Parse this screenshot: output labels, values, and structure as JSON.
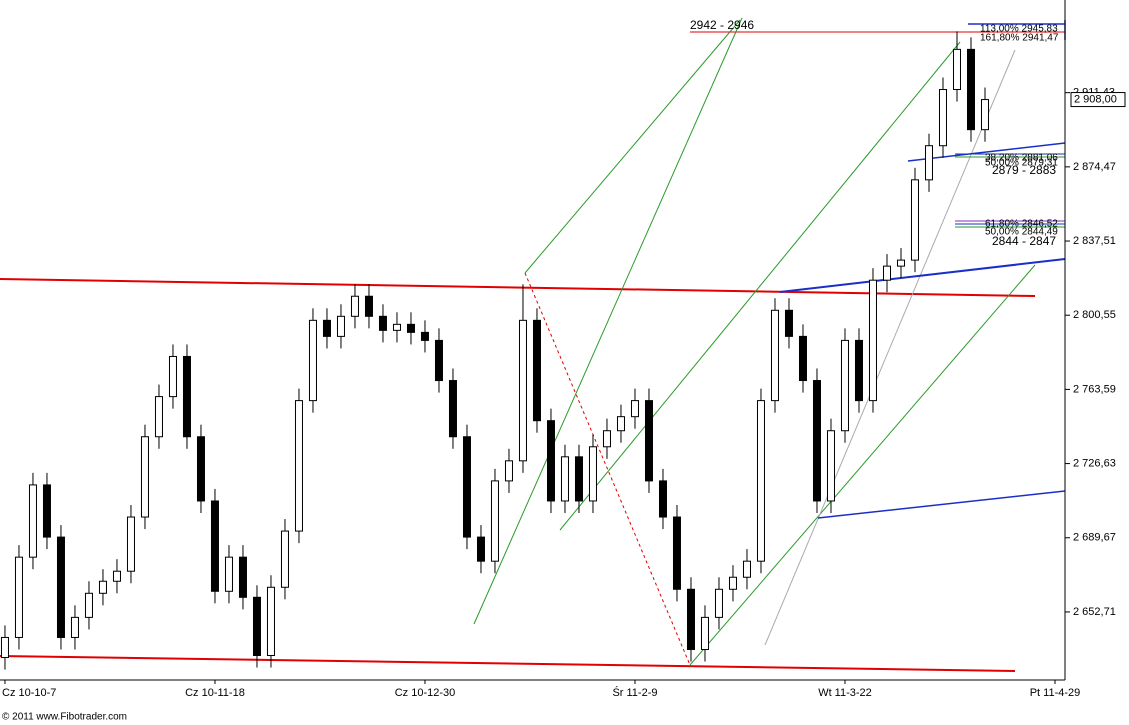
{
  "chart_data": {
    "type": "candlestick",
    "x": [
      0,
      2,
      4,
      6,
      8,
      10,
      12,
      14,
      16,
      18,
      20,
      22,
      24,
      26,
      28,
      30,
      32,
      34,
      36,
      38,
      40,
      42,
      44,
      46,
      48,
      50,
      52,
      54,
      56,
      58,
      60,
      62,
      64,
      66,
      68,
      70,
      72,
      74,
      76,
      78,
      80,
      82,
      84,
      86,
      88,
      90,
      92,
      94,
      96,
      98,
      100,
      102,
      104,
      106,
      108,
      110,
      112,
      114,
      116,
      118,
      120,
      122,
      124,
      126,
      128,
      130,
      132,
      134,
      136,
      138,
      140
    ],
    "open": [
      2630,
      2640,
      2680,
      2716,
      2690,
      2640,
      2650,
      2662,
      2668,
      2673,
      2700,
      2740,
      2760,
      2780,
      2740,
      2708,
      2663,
      2680,
      2660,
      2631,
      2665,
      2693,
      2758,
      2798,
      2790,
      2800,
      2810,
      2800,
      2793,
      2796,
      2792,
      2788,
      2768,
      2740,
      2690,
      2678,
      2718,
      2728,
      2798,
      2748,
      2708,
      2730,
      2708,
      2735,
      2743,
      2750,
      2758,
      2718,
      2700,
      2664,
      2634,
      2650,
      2664,
      2670,
      2678,
      2758,
      2803,
      2790,
      2768,
      2708,
      2743,
      2788,
      2758,
      2818,
      2825,
      2828,
      2868,
      2885,
      2913,
      2933,
      2893
    ],
    "high": [
      2646,
      2686,
      2722,
      2722,
      2696,
      2656,
      2668,
      2674,
      2679,
      2706,
      2746,
      2766,
      2786,
      2786,
      2746,
      2714,
      2686,
      2686,
      2666,
      2671,
      2699,
      2764,
      2804,
      2804,
      2806,
      2816,
      2816,
      2806,
      2802,
      2802,
      2798,
      2794,
      2774,
      2746,
      2696,
      2724,
      2734,
      2816,
      2804,
      2754,
      2736,
      2736,
      2741,
      2749,
      2756,
      2764,
      2764,
      2724,
      2706,
      2670,
      2656,
      2670,
      2676,
      2684,
      2764,
      2809,
      2809,
      2796,
      2774,
      2749,
      2794,
      2794,
      2824,
      2831,
      2834,
      2874,
      2891,
      2919,
      2942,
      2939,
      2914
    ],
    "low": [
      2624,
      2634,
      2674,
      2684,
      2634,
      2634,
      2644,
      2656,
      2662,
      2667,
      2694,
      2734,
      2754,
      2734,
      2702,
      2657,
      2657,
      2654,
      2625,
      2625,
      2659,
      2687,
      2752,
      2784,
      2784,
      2794,
      2794,
      2787,
      2787,
      2786,
      2782,
      2762,
      2734,
      2684,
      2672,
      2672,
      2712,
      2722,
      2742,
      2702,
      2702,
      2702,
      2702,
      2729,
      2737,
      2744,
      2712,
      2694,
      2658,
      2628,
      2628,
      2644,
      2658,
      2664,
      2672,
      2752,
      2784,
      2762,
      2702,
      2702,
      2737,
      2752,
      2752,
      2812,
      2819,
      2822,
      2862,
      2879,
      2907,
      2887,
      2887
    ],
    "close": [
      2640,
      2680,
      2716,
      2690,
      2640,
      2650,
      2662,
      2668,
      2673,
      2700,
      2740,
      2760,
      2780,
      2740,
      2708,
      2663,
      2680,
      2660,
      2631,
      2665,
      2693,
      2758,
      2798,
      2790,
      2800,
      2810,
      2800,
      2793,
      2796,
      2792,
      2788,
      2768,
      2740,
      2690,
      2678,
      2718,
      2728,
      2798,
      2748,
      2708,
      2730,
      2708,
      2735,
      2743,
      2750,
      2758,
      2718,
      2700,
      2664,
      2634,
      2650,
      2664,
      2670,
      2678,
      2758,
      2803,
      2790,
      2768,
      2708,
      2743,
      2788,
      2758,
      2818,
      2825,
      2828,
      2868,
      2885,
      2913,
      2933,
      2893,
      2908
    ],
    "up_color": "#ffffff",
    "down_color": "#000000",
    "last_price": {
      "value": 2908,
      "label": "2 908,00"
    },
    "xlim": [
      -0.71,
      151.43
    ],
    "xticks": [
      {
        "value": 0,
        "label": "Cz 10-10-7"
      },
      {
        "value": 30,
        "label": "Cz 10-11-18"
      },
      {
        "value": 60,
        "label": "Cz 10-12-30"
      },
      {
        "value": 90,
        "label": "Śr 11-2-9"
      },
      {
        "value": 120,
        "label": "Wt 11-3-22"
      },
      {
        "value": 150,
        "label": "Pt 11-4-29"
      }
    ],
    "ylim": [
      2618.8,
      2957.6
    ],
    "yticks": [
      {
        "value": 2652.71,
        "label": "2 652,71"
      },
      {
        "value": 2689.67,
        "label": "2 689,67"
      },
      {
        "value": 2726.63,
        "label": "2 726,63"
      },
      {
        "value": 2763.59,
        "label": "2 763,59"
      },
      {
        "value": 2800.55,
        "label": "2 800,55"
      },
      {
        "value": 2837.51,
        "label": "2 837,51"
      },
      {
        "value": 2874.47,
        "label": "2 874,47"
      },
      {
        "value": 2911.43,
        "label": "2 911,43"
      }
    ],
    "annotations": [
      "2942 - 2946",
      "113,00% 2945,83",
      "161,80% 2941,47",
      "38,20% 2881,06",
      "50,00% 2879,31",
      "2879 - 2883",
      "61,80% 2846,52",
      "50,00% 2844,49",
      "2844 - 2847"
    ],
    "credit": "© 2011 www.Fibotrader.com"
  }
}
